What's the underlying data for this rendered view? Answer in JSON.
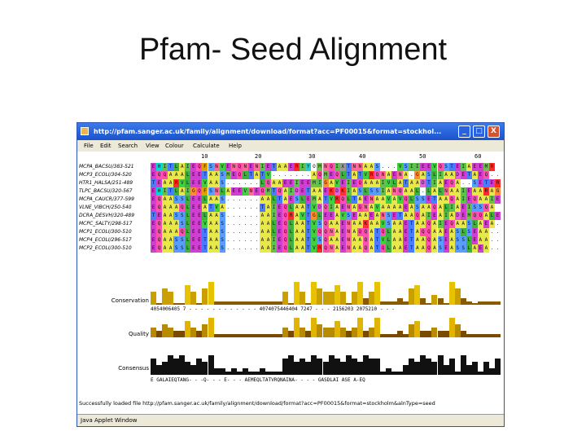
{
  "slide": {
    "title": "Pfam- Seed Alignment"
  },
  "window": {
    "title": "http://pfam.sanger.ac.uk/family/alignment/download/format?acc=PF00015&format=stockhol...",
    "buttons": [
      "_",
      "□",
      "X"
    ]
  },
  "menu": [
    "File",
    "Edit",
    "Search",
    "View",
    "Colour",
    "Calculate",
    "Help"
  ],
  "ruler": [
    "10",
    "20",
    "30",
    "40",
    "50",
    "60"
  ],
  "sequence_names": [
    "MCPA_BACSU/383-521",
    "MCP3_ECOLI/304-520",
    "HTR1_HALSA/251-489",
    "TLPC_BACSU/320-567",
    "MCPA_CAUCR/377-599",
    "VLNE_VIBCH/250-540",
    "DCRA_DESVH/320-489",
    "MCPC_SALTY/298-517",
    "MCP1_ECOLI/300-510",
    "MCP4_ECOLI/296-517",
    "MCP2_ECOLI/300-510"
  ],
  "rows": [
    "EHITLAIEQFSNVENQNENIETAAERIYOMNQIXTNNAAS...VSIIEEVQSTEIAEEMR",
    "EQQAAALEETAASMEQLTATV.......AQMEQLTATVRQNAENA.GASLIAADETAEQ..",
    "TEAARVLEEVAAS......LQAAEEIEEMIGAVEIEQAAAIVLATAADTIAEQA..SETER",
    "EHITLAIGQFSNLAEEVNEQMTQAIDETAAEKDKIASLSSIANQAAL.LALNAAIEAARAG",
    "EQAASSLEELAAS......AALTAESLEMATVRQLTAENAAVAVQLSSETAAQAIEQAAIE",
    "EQAAAQLEEATVA......TAIEQLAATVDQIAENAQNAVAAAAEASAAQALIAEISSQA",
    "TEAASSLEELAAS......AAIEQRAVTGLEEAVSEAAEANSETAAQAIEAIADEMQQALE",
    "EQAAASLEEVAAS......AALEQLAATVSQAAENAAKAAVSAAETAAQAIEQAASLAEA.",
    "EQAAAQLEETAAS......AALEQLAATVQQNAENAQQATQLAAETAQQAAEASLSEAA..",
    "EQAASSLEETAAS......AAIEQLAATVSQAAENAAQATVLAAETAAQASEASSLEAA..",
    "EQAASSLEETAAS......AAIEQLAATVRQNAENAAQATQLAAETAAQASEASSLAEA.."
  ],
  "palette": {
    "A": "#e8e84a",
    "C": "#f0a0c0",
    "D": "#e060e0",
    "E": "#d040d0",
    "F": "#e0a000",
    "G": "#ff8c30",
    "H": "#00d8d8",
    "I": "#60c050",
    "K": "#ff3030",
    "L": "#40b040",
    "M": "#70c050",
    "N": "#ff6a9a",
    "P": "#c0c0ff",
    "Q": "#ff4fb0",
    "R": "#ff2a2a",
    "S": "#5a9cff",
    "T": "#4a7cff",
    "V": "#40d040",
    "W": "#a0e040",
    "Y": "#30c8c8",
    "X": "#9a9a9a"
  },
  "annotations": {
    "conservation_label": "Conservation",
    "quality_label": "Quality",
    "consensus_label": "Consensus",
    "conservation_digits": "4054006405 7 - - - - - - - - - - - - 4074075446404 7247 - - - 2156203 2075210 - - -",
    "consensus_string": "E GALAIEQTANG- - -Q- - - E- - - AEMEQLTATVRQNAINA- - - - GASDLAI ASE A-EQ",
    "conservation_values": [
      4,
      0,
      5,
      4,
      0,
      0,
      6,
      4,
      0,
      5,
      7,
      1,
      1,
      1,
      1,
      1,
      1,
      1,
      1,
      1,
      1,
      1,
      1,
      4,
      0,
      7,
      4,
      0,
      7,
      5,
      4,
      4,
      6,
      4,
      0,
      4,
      7,
      2,
      4,
      7,
      1,
      1,
      1,
      2,
      1,
      5,
      6,
      2,
      0,
      3,
      2,
      0,
      7,
      5,
      2,
      1,
      0,
      1,
      1,
      1,
      1
    ],
    "quality_values": [
      3,
      2,
      4,
      3,
      2,
      2,
      5,
      3,
      2,
      4,
      6,
      1,
      1,
      1,
      1,
      1,
      1,
      1,
      1,
      1,
      1,
      1,
      1,
      3,
      2,
      6,
      3,
      2,
      6,
      4,
      3,
      3,
      5,
      3,
      2,
      3,
      6,
      2,
      3,
      6,
      1,
      1,
      1,
      2,
      1,
      4,
      5,
      2,
      2,
      3,
      2,
      2,
      6,
      4,
      2,
      1,
      1,
      1,
      1,
      1,
      1
    ],
    "consensus_values": [
      5,
      3,
      4,
      6,
      5,
      6,
      4,
      3,
      5,
      4,
      6,
      2,
      2,
      1,
      2,
      1,
      2,
      1,
      1,
      2,
      1,
      1,
      1,
      5,
      6,
      4,
      5,
      4,
      6,
      5,
      4,
      6,
      5,
      4,
      6,
      5,
      4,
      6,
      5,
      5,
      1,
      2,
      1,
      1,
      3,
      5,
      4,
      6,
      5,
      4,
      6,
      3,
      5,
      1,
      6,
      3,
      4,
      1,
      4,
      2,
      5
    ]
  },
  "status": "Successfully loaded file http://pfam.sanger.ac.uk/family/alignment/download/format?acc=PF00015&format=stockholm&alnType=seed",
  "applet_status": "Java Applet Window"
}
